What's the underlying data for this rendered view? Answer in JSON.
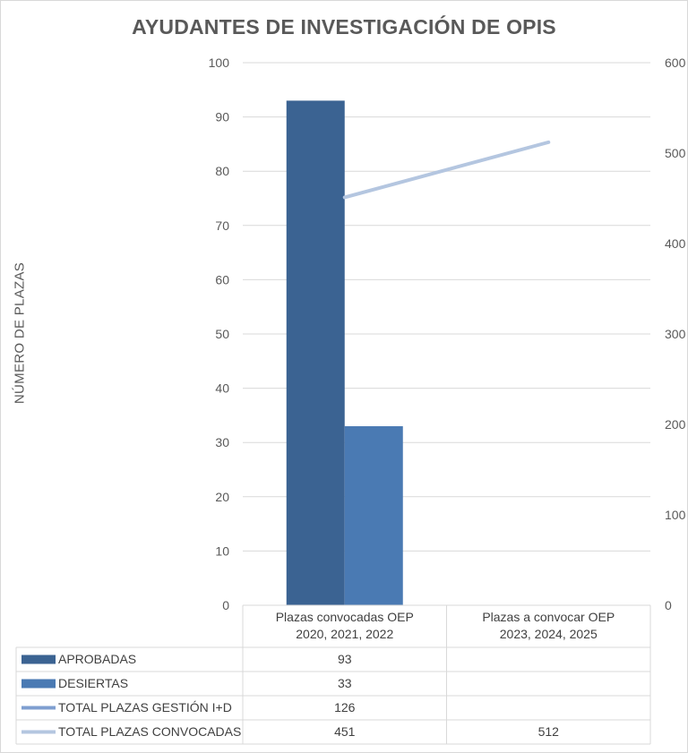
{
  "chart_data": {
    "type": "bar",
    "title": "AYUDANTES DE INVESTIGACIÓN DE OPIS",
    "ylabel": "NÚMERO DE PLAZAS",
    "categories": [
      "Plazas convocadas OEP 2020, 2021, 2022",
      "Plazas a convocar OEP 2023, 2024, 2025"
    ],
    "category_lines": [
      [
        "Plazas convocadas OEP",
        "2020, 2021, 2022"
      ],
      [
        "Plazas a convocar OEP",
        "2023, 2024, 2025"
      ]
    ],
    "ylim": [
      0,
      100
    ],
    "yticks": [
      0,
      10,
      20,
      30,
      40,
      50,
      60,
      70,
      80,
      90,
      100
    ],
    "y2lim": [
      0,
      600
    ],
    "y2ticks": [
      0,
      100,
      200,
      300,
      400,
      500,
      600
    ],
    "grid": true,
    "series": [
      {
        "name": "APROBADAS",
        "kind": "bar",
        "axis": "primary",
        "color": "#3b6392",
        "values": [
          93,
          null
        ],
        "table": [
          "93",
          ""
        ]
      },
      {
        "name": "DESIERTAS",
        "kind": "bar",
        "axis": "primary",
        "color": "#4a7ab3",
        "values": [
          33,
          null
        ],
        "table": [
          "33",
          ""
        ]
      },
      {
        "name": "TOTAL PLAZAS GESTIÓN I+D",
        "kind": "line",
        "axis": "secondary",
        "color": "#7f9fd0",
        "values": [
          126,
          null
        ],
        "table": [
          "126",
          ""
        ]
      },
      {
        "name": "TOTAL PLAZAS CONVOCADAS",
        "kind": "line",
        "axis": "secondary",
        "color": "#b4c6e0",
        "values": [
          451,
          512
        ],
        "table": [
          "451",
          "512"
        ]
      }
    ],
    "legend_placement": "data-table"
  }
}
